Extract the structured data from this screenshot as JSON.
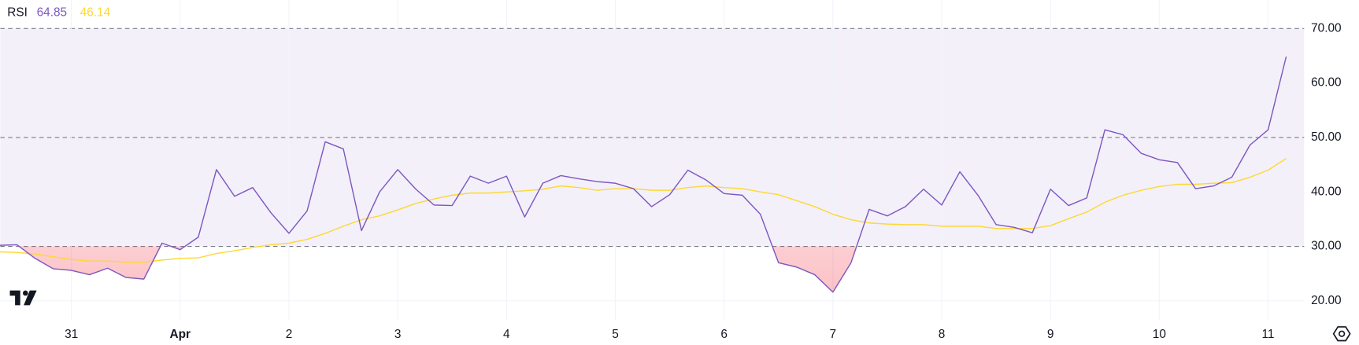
{
  "chart_data": {
    "type": "line",
    "title": "RSI",
    "categories": [
      null,
      null,
      null,
      null,
      "31",
      null,
      null,
      null,
      null,
      null,
      "Apr",
      null,
      null,
      null,
      null,
      null,
      "2",
      null,
      null,
      null,
      null,
      null,
      "3",
      null,
      null,
      null,
      null,
      null,
      "4",
      null,
      null,
      null,
      null,
      null,
      "5",
      null,
      null,
      null,
      null,
      null,
      "6",
      null,
      null,
      null,
      null,
      null,
      "7",
      null,
      null,
      null,
      null,
      null,
      "8",
      null,
      null,
      null,
      null,
      null,
      "9",
      null,
      null,
      null,
      null,
      null,
      "10",
      null,
      null,
      null,
      null,
      null,
      "11",
      null
    ],
    "series": [
      {
        "color": "#7e57c2",
        "values": [
          30.2,
          30.3,
          27.8,
          25.9,
          25.6,
          24.8,
          26.0,
          24.3,
          24.0,
          30.6,
          29.4,
          31.7,
          44.1,
          39.2,
          40.8,
          36.2,
          32.4,
          36.5,
          49.2,
          47.9,
          32.9,
          40.0,
          44.1,
          40.5,
          37.6,
          37.5,
          42.9,
          41.6,
          42.9,
          35.4,
          41.6,
          43.0,
          42.4,
          41.9,
          41.6,
          40.6,
          37.3,
          39.5,
          44.0,
          42.2,
          39.7,
          39.4,
          35.9,
          27.0,
          26.2,
          24.8,
          21.6,
          27.0,
          36.8,
          35.6,
          37.3,
          40.5,
          37.6,
          43.7,
          39.4,
          34.0,
          33.5,
          32.5,
          40.5,
          37.5,
          38.9,
          51.4,
          50.5,
          47.1,
          45.9,
          45.4,
          40.6,
          41.1,
          42.7,
          48.6,
          51.4,
          64.85
        ]
      },
      {
        "color": "#fdd835",
        "values": [
          29.0,
          28.9,
          28.6,
          28.1,
          27.6,
          27.3,
          27.3,
          27.1,
          27.1,
          27.5,
          27.8,
          27.9,
          28.7,
          29.2,
          29.8,
          30.3,
          30.6,
          31.3,
          32.4,
          33.7,
          34.9,
          35.6,
          36.7,
          37.9,
          38.7,
          39.4,
          39.8,
          39.8,
          40.0,
          40.2,
          40.5,
          41.1,
          40.8,
          40.3,
          40.6,
          40.6,
          40.3,
          40.3,
          40.8,
          41.1,
          40.8,
          40.6,
          40.0,
          39.5,
          38.4,
          37.3,
          35.9,
          34.9,
          34.3,
          34.1,
          34.0,
          34.0,
          33.7,
          33.7,
          33.7,
          33.3,
          33.3,
          33.3,
          33.8,
          35.1,
          36.3,
          38.1,
          39.4,
          40.3,
          41.0,
          41.4,
          41.4,
          41.6,
          41.7,
          42.7,
          44.0,
          46.14
        ]
      }
    ],
    "ylim": [
      16.5,
      75.24
    ],
    "yticks": [
      {
        "value": 20,
        "label": "20.00"
      },
      {
        "value": 30,
        "label": "30.00"
      },
      {
        "value": 40,
        "label": "40.00"
      },
      {
        "value": 50,
        "label": "50.00"
      },
      {
        "value": 60,
        "label": "60.00"
      },
      {
        "value": 70,
        "label": "70.00"
      }
    ],
    "dashed_levels": [
      30,
      50,
      70
    ],
    "band_color": "#7e57c2",
    "oversold_color": "#f23645",
    "grid": true
  }
}
